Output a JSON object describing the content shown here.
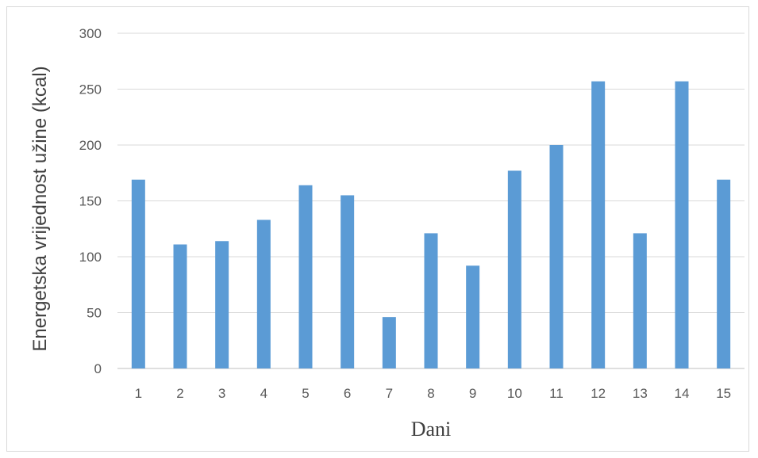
{
  "chart_data": {
    "type": "bar",
    "categories": [
      "1",
      "2",
      "3",
      "4",
      "5",
      "6",
      "7",
      "8",
      "9",
      "10",
      "11",
      "12",
      "13",
      "14",
      "15"
    ],
    "values": [
      169,
      111,
      114,
      133,
      164,
      155,
      46,
      121,
      92,
      177,
      200,
      257,
      121,
      257,
      169
    ],
    "title": "",
    "xlabel": "Dani",
    "ylabel": "Energetska vrijednost užine (kcal)",
    "ylim": [
      0,
      300
    ],
    "yticks": [
      0,
      50,
      100,
      150,
      200,
      250,
      300
    ],
    "grid": true,
    "bar_color": "#5b9bd5"
  }
}
